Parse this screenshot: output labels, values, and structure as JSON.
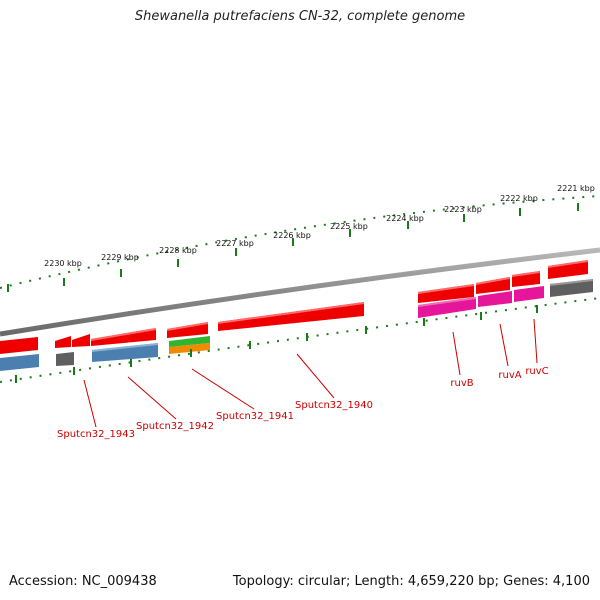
{
  "title": "Shewanella putrefaciens CN-32, complete genome",
  "footer": {
    "accession": "Accession: NC_009438",
    "topology": "Topology: circular; Length: 4,659,220 bp; Genes: 4,100"
  },
  "colors": {
    "backbone": "#7f7f7f",
    "tick": "#1a7a1a",
    "gene_red": "#ee0000",
    "gene_blue": "#4a7fb0",
    "gene_gray": "#5f5f5f",
    "gene_magenta": "#e6169a",
    "gene_green": "#2fb52f",
    "gene_orange": "#f08a00",
    "label": "#cc0000"
  },
  "kbp_labels": [
    "2221 kbp",
    "2222 kbp",
    "2223 kbp",
    "2224 kbp",
    "2225 kbp",
    "2226 kbp",
    "2227 kbp",
    "2228 kbp",
    "2229 kbp",
    "2230 kbp"
  ],
  "gene_labels": [
    "ruvB",
    "ruvA",
    "ruvC",
    "Sputcn32_1940",
    "Sputcn32_1941",
    "Sputcn32_1942",
    "Sputcn32_1943"
  ]
}
